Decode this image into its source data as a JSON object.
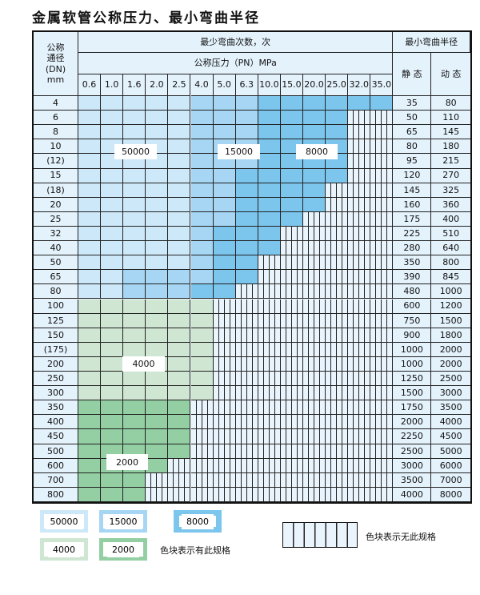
{
  "title": "金属软管公称压力、最小弯曲半径",
  "header": {
    "dn_label": "公称\n通径\n(DN)\nmm",
    "cycles_label": "最少弯曲次数，次",
    "pressure_label": "公称压力（PN）MPa",
    "radius_label": "最小弯曲半径",
    "static_label": "静 态",
    "dynamic_label": "动 态",
    "pressures": [
      "0.6",
      "1.0",
      "1.6",
      "2.0",
      "2.5",
      "4.0",
      "5.0",
      "6.3",
      "10.0",
      "15.0",
      "20.0",
      "25.0",
      "32.0",
      "35.0"
    ]
  },
  "colors": {
    "50000": "#cde8f8",
    "15000": "#a6d6f3",
    "8000": "#7cc6ee",
    "4000": "#cfe6d3",
    "2000": "#94cfa3",
    "none": "#eaf4fc"
  },
  "rows": [
    {
      "dn": "4",
      "static": "35",
      "dynamic": "80",
      "cycles": [
        50000,
        50000,
        50000,
        50000,
        50000,
        15000,
        15000,
        15000,
        8000,
        8000,
        8000,
        8000,
        8000,
        8000
      ]
    },
    {
      "dn": "6",
      "static": "50",
      "dynamic": "110",
      "cycles": [
        50000,
        50000,
        50000,
        50000,
        50000,
        15000,
        15000,
        15000,
        8000,
        8000,
        8000,
        8000,
        null,
        null
      ]
    },
    {
      "dn": "8",
      "static": "65",
      "dynamic": "145",
      "cycles": [
        50000,
        50000,
        50000,
        50000,
        50000,
        15000,
        15000,
        15000,
        8000,
        8000,
        8000,
        8000,
        null,
        null
      ]
    },
    {
      "dn": "10",
      "static": "80",
      "dynamic": "180",
      "cycles": [
        50000,
        50000,
        50000,
        50000,
        50000,
        15000,
        15000,
        15000,
        8000,
        8000,
        8000,
        8000,
        null,
        null
      ]
    },
    {
      "dn": "(12)",
      "static": "95",
      "dynamic": "215",
      "cycles": [
        50000,
        50000,
        50000,
        50000,
        50000,
        15000,
        15000,
        15000,
        8000,
        8000,
        8000,
        8000,
        null,
        null
      ]
    },
    {
      "dn": "15",
      "static": "120",
      "dynamic": "270",
      "cycles": [
        50000,
        50000,
        50000,
        50000,
        50000,
        15000,
        15000,
        8000,
        8000,
        8000,
        8000,
        8000,
        null,
        null
      ]
    },
    {
      "dn": "(18)",
      "static": "145",
      "dynamic": "325",
      "cycles": [
        50000,
        50000,
        50000,
        50000,
        50000,
        15000,
        15000,
        8000,
        8000,
        8000,
        8000,
        null,
        null,
        null
      ]
    },
    {
      "dn": "20",
      "static": "160",
      "dynamic": "360",
      "cycles": [
        50000,
        50000,
        50000,
        50000,
        50000,
        15000,
        15000,
        8000,
        8000,
        8000,
        8000,
        null,
        null,
        null
      ]
    },
    {
      "dn": "25",
      "static": "175",
      "dynamic": "400",
      "cycles": [
        50000,
        50000,
        50000,
        50000,
        50000,
        15000,
        15000,
        8000,
        8000,
        8000,
        null,
        null,
        null,
        null
      ]
    },
    {
      "dn": "32",
      "static": "225",
      "dynamic": "510",
      "cycles": [
        50000,
        50000,
        50000,
        50000,
        50000,
        15000,
        8000,
        8000,
        8000,
        null,
        null,
        null,
        null,
        null
      ]
    },
    {
      "dn": "40",
      "static": "280",
      "dynamic": "640",
      "cycles": [
        50000,
        50000,
        50000,
        50000,
        50000,
        15000,
        8000,
        8000,
        8000,
        null,
        null,
        null,
        null,
        null
      ]
    },
    {
      "dn": "50",
      "static": "350",
      "dynamic": "800",
      "cycles": [
        50000,
        50000,
        50000,
        50000,
        50000,
        15000,
        8000,
        8000,
        null,
        null,
        null,
        null,
        null,
        null
      ]
    },
    {
      "dn": "65",
      "static": "390",
      "dynamic": "845",
      "cycles": [
        50000,
        50000,
        15000,
        15000,
        15000,
        15000,
        8000,
        8000,
        null,
        null,
        null,
        null,
        null,
        null
      ]
    },
    {
      "dn": "80",
      "static": "480",
      "dynamic": "1000",
      "cycles": [
        50000,
        50000,
        15000,
        15000,
        15000,
        8000,
        8000,
        null,
        null,
        null,
        null,
        null,
        null,
        null
      ]
    },
    {
      "dn": "100",
      "static": "600",
      "dynamic": "1200",
      "cycles": [
        4000,
        4000,
        4000,
        4000,
        4000,
        4000,
        null,
        null,
        null,
        null,
        null,
        null,
        null,
        null
      ]
    },
    {
      "dn": "125",
      "static": "750",
      "dynamic": "1500",
      "cycles": [
        4000,
        4000,
        4000,
        4000,
        4000,
        4000,
        null,
        null,
        null,
        null,
        null,
        null,
        null,
        null
      ]
    },
    {
      "dn": "150",
      "static": "900",
      "dynamic": "1800",
      "cycles": [
        4000,
        4000,
        4000,
        4000,
        4000,
        4000,
        null,
        null,
        null,
        null,
        null,
        null,
        null,
        null
      ]
    },
    {
      "dn": "(175)",
      "static": "1000",
      "dynamic": "2000",
      "cycles": [
        4000,
        4000,
        4000,
        4000,
        4000,
        4000,
        null,
        null,
        null,
        null,
        null,
        null,
        null,
        null
      ]
    },
    {
      "dn": "200",
      "static": "1000",
      "dynamic": "2000",
      "cycles": [
        4000,
        4000,
        4000,
        4000,
        4000,
        4000,
        null,
        null,
        null,
        null,
        null,
        null,
        null,
        null
      ]
    },
    {
      "dn": "250",
      "static": "1250",
      "dynamic": "2500",
      "cycles": [
        4000,
        4000,
        4000,
        4000,
        4000,
        4000,
        null,
        null,
        null,
        null,
        null,
        null,
        null,
        null
      ]
    },
    {
      "dn": "300",
      "static": "1500",
      "dynamic": "3000",
      "cycles": [
        4000,
        4000,
        4000,
        4000,
        4000,
        4000,
        null,
        null,
        null,
        null,
        null,
        null,
        null,
        null
      ]
    },
    {
      "dn": "350",
      "static": "1750",
      "dynamic": "3500",
      "cycles": [
        2000,
        2000,
        2000,
        2000,
        2000,
        null,
        null,
        null,
        null,
        null,
        null,
        null,
        null,
        null
      ]
    },
    {
      "dn": "400",
      "static": "2000",
      "dynamic": "4000",
      "cycles": [
        2000,
        2000,
        2000,
        2000,
        2000,
        null,
        null,
        null,
        null,
        null,
        null,
        null,
        null,
        null
      ]
    },
    {
      "dn": "450",
      "static": "2250",
      "dynamic": "4500",
      "cycles": [
        2000,
        2000,
        2000,
        2000,
        2000,
        null,
        null,
        null,
        null,
        null,
        null,
        null,
        null,
        null
      ]
    },
    {
      "dn": "500",
      "static": "2500",
      "dynamic": "5000",
      "cycles": [
        2000,
        2000,
        2000,
        2000,
        2000,
        null,
        null,
        null,
        null,
        null,
        null,
        null,
        null,
        null
      ]
    },
    {
      "dn": "600",
      "static": "3000",
      "dynamic": "6000",
      "cycles": [
        2000,
        2000,
        2000,
        2000,
        null,
        null,
        null,
        null,
        null,
        null,
        null,
        null,
        null,
        null
      ]
    },
    {
      "dn": "700",
      "static": "3500",
      "dynamic": "7000",
      "cycles": [
        2000,
        2000,
        2000,
        null,
        null,
        null,
        null,
        null,
        null,
        null,
        null,
        null,
        null,
        null
      ]
    },
    {
      "dn": "800",
      "static": "4000",
      "dynamic": "8000",
      "cycles": [
        2000,
        2000,
        2000,
        null,
        null,
        null,
        null,
        null,
        null,
        null,
        null,
        null,
        null,
        null
      ]
    }
  ],
  "region_labels": {
    "l50000": "50000",
    "l15000": "15000",
    "l8000": "8000",
    "l4000": "4000",
    "l2000": "2000"
  },
  "legend": {
    "items": [
      "50000",
      "15000",
      "8000",
      "4000",
      "2000"
    ],
    "has_spec_text": "色块表示有此规格",
    "no_spec_text": "色块表示无此规格"
  }
}
